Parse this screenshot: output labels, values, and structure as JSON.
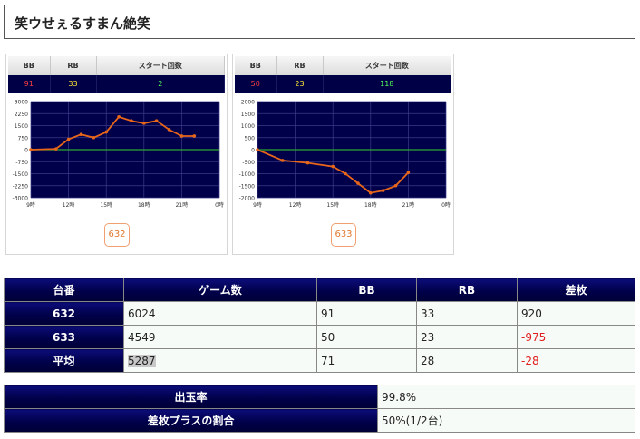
{
  "page": {
    "title": "笑ウせぇるすまん絶笑"
  },
  "panels": [
    {
      "headers": {
        "bb": "BB",
        "rb": "RB",
        "start": "スタート回数"
      },
      "values": {
        "bb": "91",
        "rb": "33",
        "start": "2"
      },
      "unit_button": "632",
      "chart_data": {
        "type": "line",
        "y_ticks": [
          "3000",
          "2250",
          "1500",
          "750",
          "0",
          "-750",
          "-1500",
          "-2250",
          "-3000"
        ],
        "ylim": [
          -3000,
          3000
        ],
        "x_ticks": [
          "9時",
          "12時",
          "15時",
          "18時",
          "21時",
          "0時"
        ],
        "xlim": [
          9,
          24
        ],
        "zero_line": true,
        "line_color": "#e8661a",
        "points": [
          {
            "x": 9,
            "y": 0
          },
          {
            "x": 11,
            "y": 50
          },
          {
            "x": 12,
            "y": 650
          },
          {
            "x": 13,
            "y": 950
          },
          {
            "x": 14,
            "y": 750
          },
          {
            "x": 15,
            "y": 1100
          },
          {
            "x": 16,
            "y": 2050
          },
          {
            "x": 17,
            "y": 1800
          },
          {
            "x": 18,
            "y": 1650
          },
          {
            "x": 19,
            "y": 1800
          },
          {
            "x": 20,
            "y": 1250
          },
          {
            "x": 21,
            "y": 850
          },
          {
            "x": 22,
            "y": 850
          }
        ]
      }
    },
    {
      "headers": {
        "bb": "BB",
        "rb": "RB",
        "start": "スタート回数"
      },
      "values": {
        "bb": "50",
        "rb": "23",
        "start": "118"
      },
      "unit_button": "633",
      "chart_data": {
        "type": "line",
        "y_ticks": [
          "2000",
          "1500",
          "1000",
          "500",
          "0",
          "-500",
          "-1000",
          "-1500",
          "-2000"
        ],
        "ylim": [
          -2000,
          2000
        ],
        "x_ticks": [
          "9時",
          "12時",
          "15時",
          "18時",
          "21時",
          "0時"
        ],
        "xlim": [
          9,
          24
        ],
        "zero_line": true,
        "line_color": "#e8661a",
        "points": [
          {
            "x": 9,
            "y": 0
          },
          {
            "x": 11,
            "y": -450
          },
          {
            "x": 13,
            "y": -550
          },
          {
            "x": 15,
            "y": -700
          },
          {
            "x": 16,
            "y": -1000
          },
          {
            "x": 17,
            "y": -1400
          },
          {
            "x": 18,
            "y": -1800
          },
          {
            "x": 19,
            "y": -1700
          },
          {
            "x": 20,
            "y": -1500
          },
          {
            "x": 21,
            "y": -950
          }
        ]
      }
    }
  ],
  "summary_table": {
    "headers": [
      "台番",
      "ゲーム数",
      "BB",
      "RB",
      "差枚"
    ],
    "rows": [
      {
        "label": "632",
        "games": "6024",
        "bb": "91",
        "rb": "33",
        "diff": "920"
      },
      {
        "label": "633",
        "games": "4549",
        "bb": "50",
        "rb": "23",
        "diff": "-975"
      },
      {
        "label": "平均",
        "games": "5287",
        "bb": "71",
        "rb": "28",
        "diff": "-28"
      }
    ]
  },
  "stats_table": {
    "rows": [
      {
        "label": "出玉率",
        "value": "99.8%"
      },
      {
        "label": "差枚プラスの割合",
        "value": "50%(1/2台)"
      }
    ]
  }
}
